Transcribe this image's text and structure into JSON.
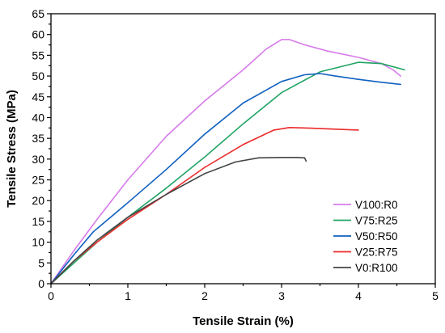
{
  "chart_data": {
    "type": "line",
    "title": "",
    "xlabel": "Tensile Strain (%)",
    "ylabel": "Tensile Stress (MPa)",
    "xlim": [
      0,
      5
    ],
    "ylim": [
      0,
      65
    ],
    "x_ticks": [
      "0",
      "1",
      "2",
      "3",
      "4",
      "5"
    ],
    "y_ticks": [
      "0",
      "5",
      "10",
      "15",
      "20",
      "25",
      "30",
      "35",
      "40",
      "45",
      "50",
      "55",
      "60",
      "65"
    ],
    "grid": false,
    "legend_position": "bottom-right",
    "series": [
      {
        "name": "V100:R0",
        "color": "#d77bea",
        "points": [
          [
            0,
            0
          ],
          [
            0.3,
            8
          ],
          [
            0.6,
            15.5
          ],
          [
            1.0,
            25
          ],
          [
            1.5,
            35.5
          ],
          [
            2.0,
            44
          ],
          [
            2.5,
            51.5
          ],
          [
            2.8,
            56.5
          ],
          [
            3.0,
            58.8
          ],
          [
            3.1,
            58.8
          ],
          [
            3.3,
            57.5
          ],
          [
            3.6,
            56
          ],
          [
            4.0,
            54.5
          ],
          [
            4.3,
            53
          ],
          [
            4.45,
            51.5
          ],
          [
            4.55,
            50
          ]
        ]
      },
      {
        "name": "V75:R25",
        "color": "#1fa464",
        "points": [
          [
            0,
            0
          ],
          [
            0.3,
            5
          ],
          [
            0.6,
            10
          ],
          [
            1.0,
            16
          ],
          [
            1.5,
            23
          ],
          [
            2.0,
            30.5
          ],
          [
            2.5,
            38.5
          ],
          [
            3.0,
            46
          ],
          [
            3.5,
            51
          ],
          [
            4.0,
            53.3
          ],
          [
            4.3,
            53
          ],
          [
            4.6,
            51.5
          ]
        ]
      },
      {
        "name": "V50:R50",
        "color": "#1060c0",
        "points": [
          [
            0,
            0
          ],
          [
            0.3,
            7
          ],
          [
            0.55,
            12.5
          ],
          [
            1.0,
            19.5
          ],
          [
            1.5,
            27.5
          ],
          [
            2.0,
            36
          ],
          [
            2.5,
            43.5
          ],
          [
            3.0,
            48.7
          ],
          [
            3.3,
            50.3
          ],
          [
            3.5,
            50.6
          ],
          [
            3.7,
            50
          ],
          [
            4.0,
            49.2
          ],
          [
            4.3,
            48.5
          ],
          [
            4.55,
            48
          ]
        ]
      },
      {
        "name": "V25:R75",
        "color": "#ec2a2a",
        "points": [
          [
            0,
            0
          ],
          [
            0.3,
            5.5
          ],
          [
            0.6,
            10
          ],
          [
            1.0,
            15.5
          ],
          [
            1.5,
            21.5
          ],
          [
            2.0,
            28
          ],
          [
            2.5,
            33.5
          ],
          [
            2.9,
            37
          ],
          [
            3.1,
            37.6
          ],
          [
            3.3,
            37.5
          ],
          [
            3.7,
            37.2
          ],
          [
            4.0,
            37
          ]
        ]
      },
      {
        "name": "V0:R100",
        "color": "#444444",
        "points": [
          [
            0,
            0
          ],
          [
            0.3,
            5.5
          ],
          [
            0.6,
            10.5
          ],
          [
            1.0,
            16
          ],
          [
            1.5,
            21.5
          ],
          [
            2.0,
            26.5
          ],
          [
            2.4,
            29.3
          ],
          [
            2.7,
            30.3
          ],
          [
            3.0,
            30.4
          ],
          [
            3.2,
            30.4
          ],
          [
            3.3,
            30.3
          ],
          [
            3.32,
            29.5
          ]
        ]
      }
    ]
  }
}
